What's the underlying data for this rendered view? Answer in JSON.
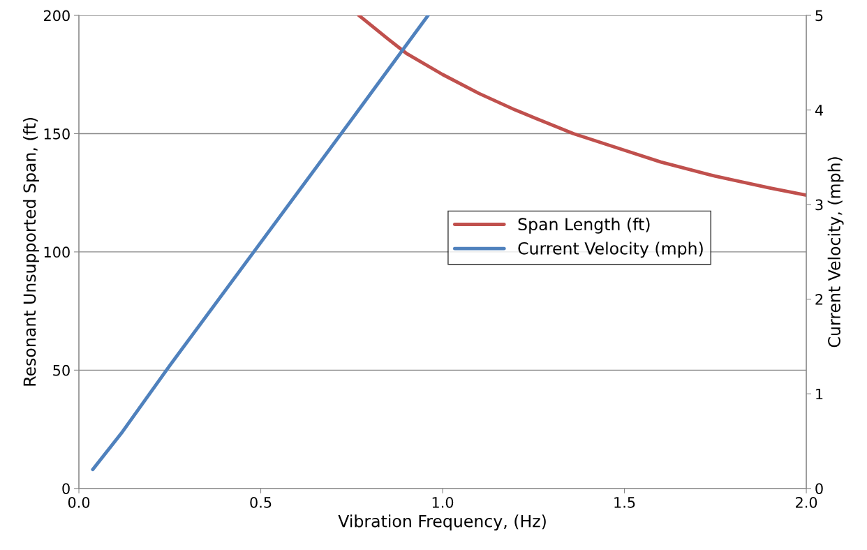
{
  "chart_data": {
    "type": "line",
    "xlabel": "Vibration Frequency, (Hz)",
    "ylabel": "Resonant Unsupported Span, (ft)",
    "y2label": "Current Velocity, (mph)",
    "series": [
      {
        "name": "Span Length (ft)",
        "color": "#c0504d",
        "x": [
          0.77,
          0.85,
          0.9,
          1.0,
          1.1,
          1.2,
          1.36,
          1.5,
          1.6,
          1.75,
          1.9,
          2.0
        ],
        "values": [
          200,
          190,
          184,
          175,
          167,
          160,
          150,
          143,
          138,
          132,
          127,
          124
        ]
      },
      {
        "name": "Current Velocity (mph)",
        "color": "#4f81bd",
        "axis": "y2",
        "x": [
          0.038,
          0.12,
          0.25,
          0.5,
          0.75,
          0.96
        ],
        "values": [
          0.2,
          0.6,
          1.3,
          2.6,
          3.9,
          5.0
        ]
      }
    ],
    "xlim": [
      0,
      2
    ],
    "xticks": [
      {
        "value": 0,
        "label": "0.0"
      },
      {
        "value": 0.5,
        "label": "0.5"
      },
      {
        "value": 1,
        "label": "1.0"
      },
      {
        "value": 1.5,
        "label": "1.5"
      },
      {
        "value": 2,
        "label": "2.0"
      }
    ],
    "ylim": [
      0,
      200
    ],
    "yticks": [
      0,
      50,
      100,
      150,
      200
    ],
    "y2lim": [
      0,
      5
    ],
    "y2ticks": [
      0,
      1,
      2,
      3,
      4,
      5
    ],
    "grid": "y",
    "legend": "center right",
    "marker": "none",
    "line_style": "solid"
  }
}
